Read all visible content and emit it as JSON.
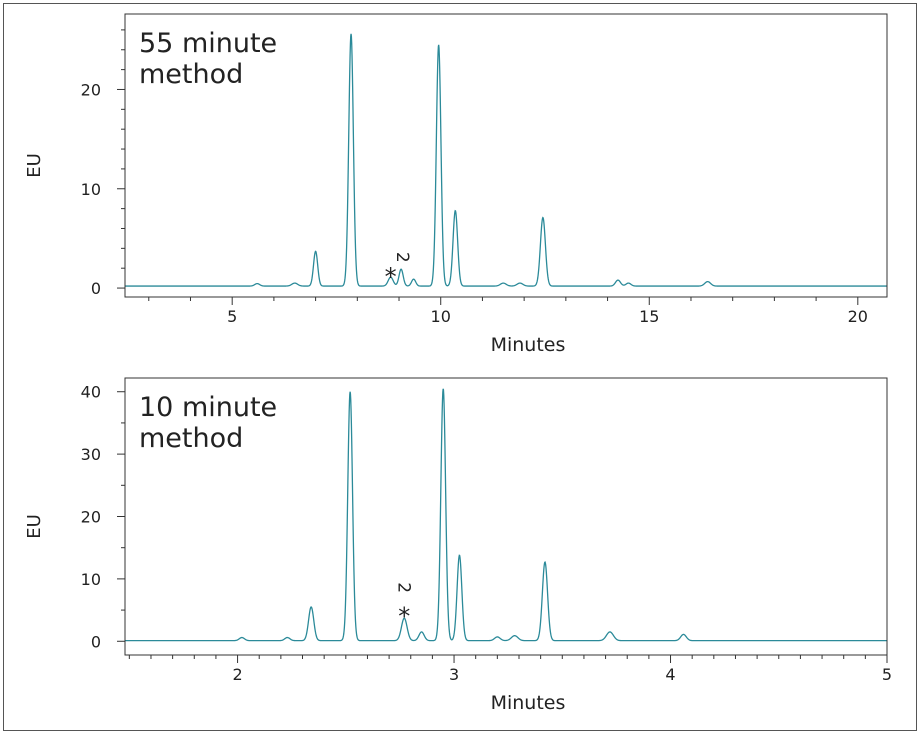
{
  "chart_data": [
    {
      "type": "line",
      "title": "55 minute method",
      "title_lines": [
        "55 minute",
        "method"
      ],
      "xlabel": "Minutes",
      "ylabel": "EU",
      "xlim": [
        2.43,
        20.7
      ],
      "ylim": [
        -0.9,
        27.6
      ],
      "xticks": [
        5,
        10,
        15,
        20
      ],
      "yticks": [
        0,
        10,
        20
      ],
      "x_minor_step": 1,
      "y_minor_step": 2,
      "line_color": "#2b8a99",
      "baseline": 0.2,
      "peaks": [
        {
          "x": 5.6,
          "height": 0.25,
          "width": 0.06
        },
        {
          "x": 6.5,
          "height": 0.3,
          "width": 0.07
        },
        {
          "x": 7.0,
          "height": 3.5,
          "width": 0.05
        },
        {
          "x": 7.85,
          "height": 25.4,
          "width": 0.055
        },
        {
          "x": 8.8,
          "height": 0.9,
          "width": 0.06
        },
        {
          "x": 9.05,
          "height": 1.7,
          "width": 0.05
        },
        {
          "x": 9.35,
          "height": 0.7,
          "width": 0.05
        },
        {
          "x": 9.95,
          "height": 24.3,
          "width": 0.055
        },
        {
          "x": 10.35,
          "height": 7.6,
          "width": 0.055
        },
        {
          "x": 11.5,
          "height": 0.3,
          "width": 0.07
        },
        {
          "x": 11.9,
          "height": 0.3,
          "width": 0.07
        },
        {
          "x": 12.45,
          "height": 6.9,
          "width": 0.06
        },
        {
          "x": 14.25,
          "height": 0.6,
          "width": 0.06
        },
        {
          "x": 14.5,
          "height": 0.3,
          "width": 0.06
        },
        {
          "x": 16.4,
          "height": 0.45,
          "width": 0.07
        }
      ],
      "annotations": [
        {
          "text": "*",
          "x": 8.8,
          "y": 1.6
        },
        {
          "text": "2",
          "x": 9.1,
          "y": 3.1
        }
      ]
    },
    {
      "type": "line",
      "title": "10 minute method",
      "title_lines": [
        "10 minute",
        "method"
      ],
      "xlabel": "Minutes",
      "ylabel": "EU",
      "xlim": [
        1.48,
        5.0
      ],
      "ylim": [
        -2.2,
        42.2
      ],
      "xticks": [
        2,
        3,
        4,
        5
      ],
      "yticks": [
        0,
        10,
        20,
        30,
        40
      ],
      "x_minor_step": 0.1,
      "y_minor_step": 5,
      "line_color": "#2b8a99",
      "baseline": 0.1,
      "peaks": [
        {
          "x": 2.02,
          "height": 0.5,
          "width": 0.012
        },
        {
          "x": 2.23,
          "height": 0.5,
          "width": 0.012
        },
        {
          "x": 2.34,
          "height": 5.4,
          "width": 0.012
        },
        {
          "x": 2.52,
          "height": 39.9,
          "width": 0.011
        },
        {
          "x": 2.77,
          "height": 3.6,
          "width": 0.013
        },
        {
          "x": 2.85,
          "height": 1.4,
          "width": 0.012
        },
        {
          "x": 2.95,
          "height": 40.4,
          "width": 0.011
        },
        {
          "x": 3.025,
          "height": 13.7,
          "width": 0.011
        },
        {
          "x": 3.2,
          "height": 0.6,
          "width": 0.013
        },
        {
          "x": 3.28,
          "height": 0.8,
          "width": 0.015
        },
        {
          "x": 3.42,
          "height": 12.6,
          "width": 0.012
        },
        {
          "x": 3.72,
          "height": 1.4,
          "width": 0.016
        },
        {
          "x": 4.06,
          "height": 1.0,
          "width": 0.013
        }
      ],
      "annotations": [
        {
          "text": "*",
          "x": 2.77,
          "y": 4.8
        },
        {
          "text": "2",
          "x": 2.77,
          "y": 8.6
        }
      ]
    }
  ]
}
